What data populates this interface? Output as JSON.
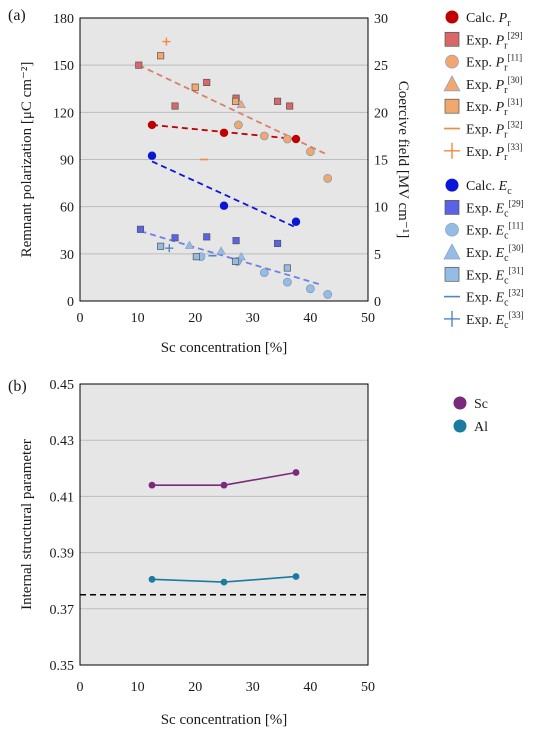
{
  "chart_data": [
    {
      "type": "scatter",
      "panel_label": "(a)",
      "xlabel": "Sc concentration [%]",
      "ylabel": "Remnant polarization [μC cm⁻²]",
      "y2label": "Coercive field [MV cm⁻¹]",
      "xlim": [
        0,
        50
      ],
      "ylim": [
        0,
        180
      ],
      "y2lim": [
        0,
        30
      ],
      "xticks": [
        0,
        10,
        20,
        30,
        40,
        50
      ],
      "yticks": [
        0,
        30,
        60,
        90,
        120,
        150,
        180
      ],
      "y2ticks": [
        0,
        5,
        10,
        15,
        20,
        25,
        30
      ],
      "grid": true,
      "legend_position": "right",
      "series": [
        {
          "id": "calc_pr",
          "axis": "left",
          "marker": "circle",
          "color": "#c00000",
          "size": "large",
          "legend_main": "Calc. ",
          "legend_sym": "P",
          "legend_sub": "r",
          "legend_ref": "",
          "x": [
            12.5,
            25,
            37.5
          ],
          "y": [
            112,
            107,
            103
          ]
        },
        {
          "id": "exp_pr_29",
          "axis": "left",
          "marker": "square",
          "color": "#d9676a",
          "legend_main": "Exp. ",
          "legend_sym": "P",
          "legend_sub": "r",
          "legend_ref": "[29]",
          "x": [
            10.2,
            16.5,
            22,
            27.1,
            34.3,
            36.4
          ],
          "y": [
            150,
            124,
            139,
            129,
            127,
            124
          ]
        },
        {
          "id": "exp_pr_11",
          "axis": "left",
          "marker": "circle",
          "color": "#f2a86d",
          "legend_main": "Exp. ",
          "legend_sym": "P",
          "legend_sub": "r",
          "legend_ref": "[11]",
          "x": [
            27.5,
            32,
            36,
            40,
            43
          ],
          "y": [
            112,
            105,
            103,
            95,
            78
          ]
        },
        {
          "id": "exp_pr_30",
          "axis": "left",
          "marker": "triangle",
          "color": "#f2a86d",
          "legend_main": "Exp. ",
          "legend_sym": "P",
          "legend_sub": "r",
          "legend_ref": "[30]",
          "x": [
            28
          ],
          "y": [
            125
          ]
        },
        {
          "id": "exp_pr_31",
          "axis": "left",
          "marker": "square",
          "color": "#f2a86d",
          "legend_main": "Exp. ",
          "legend_sym": "P",
          "legend_sub": "r",
          "legend_ref": "[31]",
          "x": [
            14,
            20,
            27
          ],
          "y": [
            156,
            136,
            127
          ]
        },
        {
          "id": "exp_pr_32",
          "axis": "left",
          "marker": "dash",
          "color": "#f08a3c",
          "legend_main": "Exp. ",
          "legend_sym": "P",
          "legend_sub": "r",
          "legend_ref": "[32]",
          "x": [
            21.5
          ],
          "y": [
            90
          ]
        },
        {
          "id": "exp_pr_33",
          "axis": "left",
          "marker": "plus",
          "color": "#f08a3c",
          "legend_main": "Exp. ",
          "legend_sym": "P",
          "legend_sub": "r",
          "legend_ref": "[33]",
          "x": [
            15
          ],
          "y": [
            165
          ]
        },
        {
          "id": "calc_ec",
          "axis": "right",
          "marker": "circle",
          "color": "#0a16d6",
          "size": "large",
          "legend_main": "Calc. ",
          "legend_sym": "E",
          "legend_sub": "c",
          "legend_ref": "",
          "x": [
            12.5,
            25,
            37.5
          ],
          "y": [
            15.4,
            10.1,
            8.4
          ]
        },
        {
          "id": "exp_ec_29",
          "axis": "right",
          "marker": "square",
          "color": "#5a62e8",
          "legend_main": "Exp. ",
          "legend_sym": "E",
          "legend_sub": "c",
          "legend_ref": "[29]",
          "x": [
            10.5,
            16.5,
            22,
            27.1,
            34.3
          ],
          "y": [
            7.6,
            6.7,
            6.8,
            6.4,
            6.1
          ]
        },
        {
          "id": "exp_ec_11",
          "axis": "right",
          "marker": "circle",
          "color": "#95bde4",
          "legend_main": "Exp. ",
          "legend_sym": "E",
          "legend_sub": "c",
          "legend_ref": "[11]",
          "x": [
            21,
            27.3,
            32,
            36,
            40,
            43
          ],
          "y": [
            4.7,
            4.2,
            3.0,
            2.0,
            1.3,
            0.7
          ]
        },
        {
          "id": "exp_ec_30",
          "axis": "right",
          "marker": "triangle",
          "color": "#95bde4",
          "legend_main": "Exp. ",
          "legend_sym": "E",
          "legend_sub": "c",
          "legend_ref": "[30]",
          "x": [
            19,
            24.5,
            28
          ],
          "y": [
            5.9,
            5.3,
            4.7
          ]
        },
        {
          "id": "exp_ec_31",
          "axis": "right",
          "marker": "square",
          "color": "#95bde4",
          "legend_main": "Exp. ",
          "legend_sym": "E",
          "legend_sub": "c",
          "legend_ref": "[31]",
          "x": [
            14,
            20.2,
            27,
            36
          ],
          "y": [
            5.8,
            4.7,
            4.2,
            3.5
          ]
        },
        {
          "id": "exp_ec_32",
          "axis": "right",
          "marker": "dash",
          "color": "#4f86c6",
          "legend_main": "Exp. ",
          "legend_sym": "E",
          "legend_sub": "c",
          "legend_ref": "[32]",
          "x": [
            23
          ],
          "y": [
            4.8
          ]
        },
        {
          "id": "exp_ec_33",
          "axis": "right",
          "marker": "plus",
          "color": "#4f86c6",
          "legend_main": "Exp. ",
          "legend_sym": "E",
          "legend_sub": "c",
          "legend_ref": "[33]",
          "x": [
            15.5
          ],
          "y": [
            5.6
          ]
        }
      ],
      "trendlines": [
        {
          "axis": "left",
          "color": "#c00000",
          "x": [
            12.5,
            37.5
          ],
          "y": [
            112,
            103
          ]
        },
        {
          "axis": "left",
          "color": "#d9806a",
          "x": [
            10.2,
            43
          ],
          "y": [
            150,
            93
          ]
        },
        {
          "axis": "right",
          "color": "#0a16d6",
          "x": [
            12.5,
            37.5
          ],
          "y": [
            14.8,
            7.8
          ]
        },
        {
          "axis": "right",
          "color": "#6c80e6",
          "x": [
            10.5,
            42
          ],
          "y": [
            7.4,
            1.7
          ]
        }
      ]
    },
    {
      "type": "line",
      "panel_label": "(b)",
      "xlabel": "Sc concentration [%]",
      "ylabel": "Internal structural parameter",
      "xlim": [
        0,
        50
      ],
      "ylim": [
        0.35,
        0.45
      ],
      "xticks": [
        0,
        10,
        20,
        30,
        40,
        50
      ],
      "yticks": [
        0.35,
        0.37,
        0.39,
        0.41,
        0.43,
        0.45
      ],
      "ytick_labels": [
        "0.35",
        "0.37",
        "0.39",
        "0.41",
        "0.43",
        "0.45"
      ],
      "grid": true,
      "legend_position": "right",
      "reference_line": {
        "y": 0.375,
        "style": "dashed",
        "color": "#000000"
      },
      "series": [
        {
          "name": "Sc",
          "color": "#7a2a7a",
          "x": [
            12.5,
            25,
            37.5
          ],
          "y": [
            0.414,
            0.414,
            0.4185
          ]
        },
        {
          "name": "Al",
          "color": "#1a7aa0",
          "x": [
            12.5,
            25,
            37.5
          ],
          "y": [
            0.3805,
            0.3795,
            0.3815
          ]
        }
      ]
    }
  ]
}
